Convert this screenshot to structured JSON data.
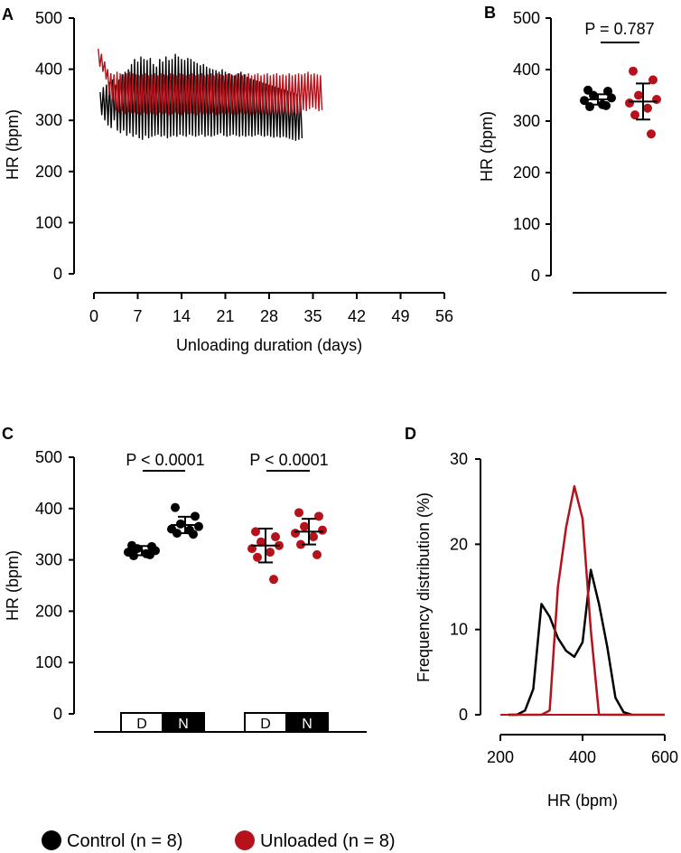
{
  "colors": {
    "control": "#000000",
    "unloaded": "#b5121b"
  },
  "legend": {
    "control": "Control (n = 8)",
    "unloaded": "Unloaded (n = 8)"
  },
  "chart_data": [
    {
      "panel": "A",
      "type": "line",
      "xlabel": "Unloading duration (days)",
      "ylabel": "HR (bpm)",
      "xlim": [
        0,
        56
      ],
      "ylim": [
        0,
        500
      ],
      "xticks": [
        0,
        7,
        14,
        21,
        28,
        35,
        42,
        49,
        56
      ],
      "yticks": [
        0,
        100,
        200,
        300,
        400,
        500
      ],
      "series": [
        {
          "name": "Control",
          "color": "#000000",
          "start_day": 1,
          "step_days": 0.25,
          "values": [
            355,
            310,
            365,
            300,
            370,
            290,
            375,
            285,
            380,
            300,
            370,
            280,
            380,
            275,
            390,
            280,
            395,
            270,
            400,
            275,
            410,
            268,
            420,
            272,
            415,
            265,
            425,
            262,
            420,
            270,
            418,
            265,
            422,
            268,
            410,
            270,
            405,
            272,
            420,
            268,
            415,
            270,
            425,
            265,
            418,
            268,
            420,
            270,
            430,
            268,
            425,
            272,
            420,
            270,
            418,
            268,
            422,
            272,
            420,
            270,
            415,
            268,
            412,
            270,
            408,
            272,
            410,
            268,
            405,
            270,
            402,
            268,
            400,
            270,
            398,
            272,
            395,
            275,
            400,
            270,
            395,
            268,
            392,
            270,
            390,
            272,
            388,
            270,
            392,
            268,
            395,
            270,
            390,
            268,
            385,
            270,
            382,
            268,
            380,
            270,
            378,
            272,
            376,
            270,
            374,
            268,
            372,
            270,
            370,
            268,
            368,
            266,
            366,
            268,
            364,
            266,
            362,
            268,
            360,
            266,
            358,
            264,
            356,
            262,
            354,
            260,
            352,
            262,
            350,
            265
          ]
        },
        {
          "name": "Unloaded",
          "color": "#b5121b",
          "start_day": 0.7,
          "step_days": 0.25,
          "values": [
            440,
            405,
            430,
            395,
            415,
            380,
            400,
            350,
            392,
            340,
            390,
            320,
            395,
            315,
            392,
            318,
            390,
            312,
            392,
            316,
            395,
            314,
            392,
            315,
            390,
            312,
            388,
            310,
            390,
            315,
            392,
            312,
            388,
            314,
            390,
            312,
            392,
            310,
            388,
            315,
            392,
            312,
            390,
            314,
            388,
            310,
            392,
            312,
            390,
            315,
            388,
            312,
            392,
            310,
            390,
            315,
            388,
            312,
            390,
            314,
            392,
            312,
            388,
            310,
            390,
            315,
            392,
            312,
            388,
            314,
            390,
            312,
            392,
            315,
            388,
            310,
            392,
            312,
            390,
            314,
            388,
            312,
            390,
            315,
            392,
            312,
            388,
            310,
            390,
            312,
            392,
            315,
            388,
            312,
            390,
            314,
            392,
            310,
            388,
            312,
            390,
            315,
            392,
            312,
            388,
            314,
            390,
            312,
            392,
            310,
            388,
            315,
            390,
            312,
            392,
            314,
            388,
            312,
            390,
            315,
            388,
            312,
            392,
            310,
            388,
            315,
            390,
            312,
            392,
            314,
            390,
            320,
            392,
            318,
            395,
            322,
            390,
            325,
            392,
            322,
            390,
            318,
            388,
            320
          ]
        }
      ]
    },
    {
      "panel": "B",
      "type": "scatter",
      "ylabel": "HR (bpm)",
      "ylim": [
        0,
        500
      ],
      "yticks": [
        0,
        100,
        200,
        300,
        400,
        500
      ],
      "annotation": "P = 0.787",
      "groups": [
        {
          "name": "Control",
          "color": "#000000",
          "points": [
            360,
            358,
            350,
            345,
            340,
            332,
            328,
            330
          ],
          "mean": 342,
          "sd": 10
        },
        {
          "name": "Unloaded",
          "color": "#b5121b",
          "points": [
            397,
            380,
            350,
            342,
            335,
            325,
            312,
            275
          ],
          "mean": 338,
          "sd": 35
        }
      ]
    },
    {
      "panel": "C",
      "type": "scatter",
      "ylabel": "HR (bpm)",
      "ylim": [
        0,
        500
      ],
      "yticks": [
        0,
        100,
        200,
        300,
        400,
        500
      ],
      "annotations": [
        "P < 0.0001",
        "P < 0.0001"
      ],
      "phase_labels": [
        "D",
        "N",
        "D",
        "N"
      ],
      "groups": [
        {
          "name": "Control D",
          "color": "#000000",
          "points": [
            328,
            326,
            322,
            318,
            315,
            312,
            308,
            310
          ],
          "mean": 318,
          "sd": 9
        },
        {
          "name": "Control N",
          "color": "#000000",
          "points": [
            402,
            385,
            370,
            365,
            360,
            358,
            352,
            350
          ],
          "mean": 368,
          "sd": 16
        },
        {
          "name": "Unloaded D",
          "color": "#b5121b",
          "points": [
            355,
            345,
            335,
            328,
            322,
            315,
            305,
            262
          ],
          "mean": 328,
          "sd": 33
        },
        {
          "name": "Unloaded N",
          "color": "#b5121b",
          "points": [
            392,
            385,
            365,
            358,
            352,
            345,
            330,
            310
          ],
          "mean": 355,
          "sd": 25
        }
      ]
    },
    {
      "panel": "D",
      "type": "line",
      "xlabel": "HR (bpm)",
      "ylabel": "Frequency distribution (%)",
      "xlim": [
        200,
        600
      ],
      "ylim": [
        0,
        30
      ],
      "xticks": [
        200,
        400,
        600
      ],
      "yticks": [
        0,
        10,
        20,
        30
      ],
      "series": [
        {
          "name": "Control",
          "color": "#000000",
          "x": [
            220,
            240,
            260,
            280,
            300,
            320,
            340,
            360,
            380,
            400,
            420,
            440,
            460,
            480,
            500,
            520
          ],
          "y": [
            0,
            0,
            0.5,
            3,
            13,
            11.5,
            9,
            7.5,
            6.8,
            8.5,
            17,
            13,
            8,
            2,
            0.3,
            0
          ]
        },
        {
          "name": "Unloaded",
          "color": "#b5121b",
          "x": [
            220,
            300,
            320,
            340,
            360,
            380,
            400,
            420,
            440,
            460,
            600
          ],
          "y": [
            0,
            0,
            0.5,
            15,
            22,
            26.8,
            23,
            10,
            0,
            0,
            0
          ]
        }
      ]
    }
  ]
}
